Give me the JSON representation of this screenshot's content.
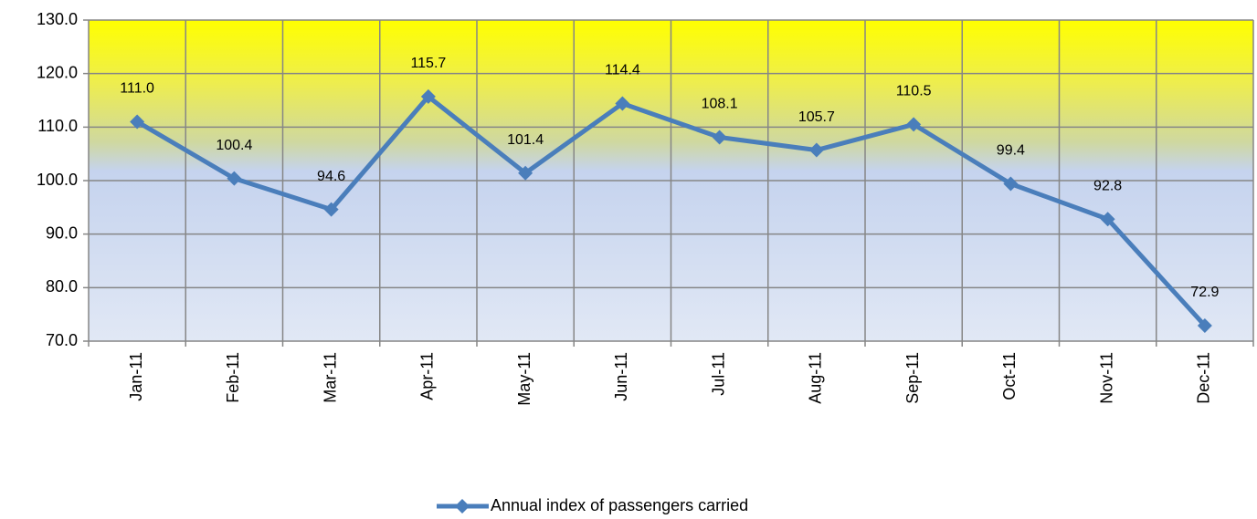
{
  "chart_data": {
    "type": "line",
    "categories": [
      "Jan-11",
      "Feb-11",
      "Mar-11",
      "Apr-11",
      "May-11",
      "Jun-11",
      "Jul-11",
      "Aug-11",
      "Sep-11",
      "Oct-11",
      "Nov-11",
      "Dec-11"
    ],
    "series": [
      {
        "name": "Annual index of passengers carried",
        "color": "#4a7ebb",
        "values": [
          111.0,
          100.4,
          94.6,
          115.7,
          101.4,
          114.4,
          108.1,
          105.7,
          110.5,
          99.4,
          92.8,
          72.9
        ],
        "value_labels": [
          "111.0",
          "100.4",
          "94.6",
          "115.7",
          "101.4",
          "114.4",
          "108.1",
          "105.7",
          "110.5",
          "99.4",
          "92.8",
          "72.9"
        ]
      }
    ],
    "ylim": [
      70,
      130
    ],
    "yticks": [
      {
        "value": 70,
        "label": "70.0"
      },
      {
        "value": 80,
        "label": "80.0"
      },
      {
        "value": 90,
        "label": "90.0"
      },
      {
        "value": 100,
        "label": "100.0"
      },
      {
        "value": 110,
        "label": "110.0"
      },
      {
        "value": 120,
        "label": "120.0"
      },
      {
        "value": 130,
        "label": "130.0"
      }
    ],
    "grid": true,
    "legend": "bottom"
  }
}
